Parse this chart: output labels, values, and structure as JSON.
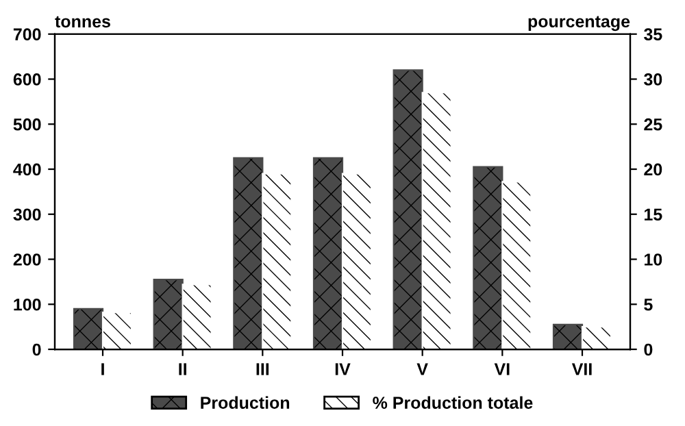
{
  "chart_data": {
    "type": "bar",
    "categories": [
      "I",
      "II",
      "III",
      "IV",
      "V",
      "VI",
      "VII"
    ],
    "series": [
      {
        "name": "Production",
        "color": "#4a4a4a",
        "values": [
          90,
          155,
          425,
          425,
          620,
          405,
          55
        ]
      },
      {
        "name": "% Production totale",
        "color": "#ffffff",
        "axis": "y2",
        "values": [
          4.1,
          7.2,
          19.5,
          19.5,
          28.5,
          18.6,
          2.5
        ]
      }
    ],
    "ylabel": "tonnes",
    "y2label": "pourcentage",
    "ylim": [
      0,
      700
    ],
    "yticks": [
      0,
      100,
      200,
      300,
      400,
      500,
      600,
      700
    ],
    "y2lim": [
      0,
      35
    ],
    "y2ticks": [
      0,
      5,
      10,
      15,
      20,
      25,
      30,
      35
    ],
    "grid": false,
    "legend": "bottom"
  }
}
